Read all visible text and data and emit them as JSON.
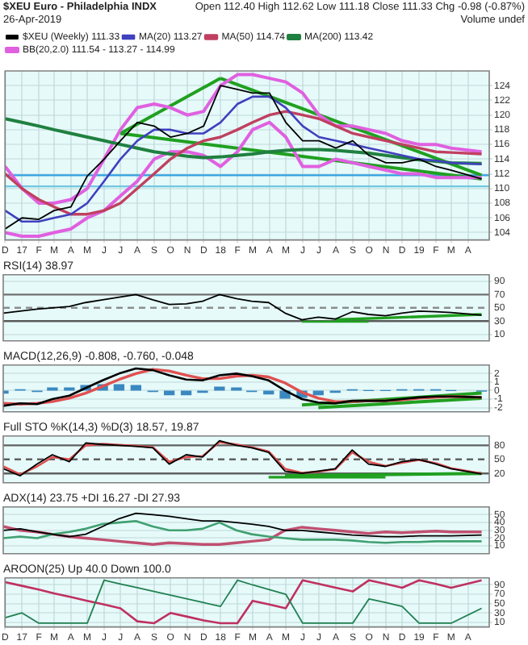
{
  "chart_data": [
    {
      "type": "line",
      "title": "$XEU Euro - Philadelphia INDX",
      "annotations": [
        "26-Apr-2019",
        "Open 112.40  High 112.62  Low 111.18  Close 111.33  Chg -0.98 (-0.87%)",
        "Volume undef"
      ],
      "x": [
        "2016-12",
        "2017-01",
        "2017-02",
        "2017-03",
        "2017-04",
        "2017-05",
        "2017-06",
        "2017-07",
        "2017-08",
        "2017-09",
        "2017-10",
        "2017-11",
        "2017-12",
        "2018-01",
        "2018-02",
        "2018-03",
        "2018-04",
        "2018-05",
        "2018-06",
        "2018-07",
        "2018-08",
        "2018-09",
        "2018-10",
        "2018-11",
        "2018-12",
        "2019-01",
        "2019-02",
        "2019-03",
        "2019-04-26"
      ],
      "series": [
        {
          "name": "$XEU (Weekly) 111.33",
          "color": "#000000",
          "values": [
            104.5,
            106,
            105.8,
            107,
            107.5,
            111.7,
            114,
            116.5,
            119,
            118.5,
            117,
            117.5,
            118.5,
            124,
            123.5,
            123,
            123,
            119,
            116.5,
            116.5,
            115.5,
            116.5,
            114.5,
            113.5,
            113.5,
            114,
            113,
            112.5,
            111.3
          ]
        },
        {
          "name": "MA(20) 113.27",
          "color": "#4040c0",
          "values": [
            107,
            105.5,
            105.5,
            106,
            106.5,
            108,
            111,
            114,
            116.5,
            118,
            118,
            117.5,
            117.5,
            119,
            121.5,
            122.5,
            122.5,
            121,
            118.5,
            117,
            116.5,
            116,
            115.5,
            115,
            114.5,
            114,
            113.8,
            113.5,
            113.3
          ]
        },
        {
          "name": "MA(50) 114.74",
          "color": "#c04060",
          "values": [
            112,
            110,
            108.5,
            107.5,
            106.5,
            106.5,
            107,
            108,
            110,
            112,
            114,
            115.5,
            116.5,
            117,
            118,
            119,
            120,
            120.5,
            120,
            119.5,
            118.5,
            117.5,
            117,
            116.5,
            116,
            115.5,
            115,
            114.9,
            114.7
          ]
        },
        {
          "name": "MA(200) 113.42",
          "color": "#208040",
          "values": [
            119.5,
            119,
            118.5,
            118,
            117.5,
            117,
            116.5,
            116,
            115.5,
            115,
            114.7,
            114.4,
            114.2,
            114.3,
            114.5,
            114.7,
            115,
            115.2,
            115.3,
            115.3,
            115.2,
            115,
            114.8,
            114.5,
            114.2,
            113.9,
            113.7,
            113.5,
            113.4
          ]
        },
        {
          "name": "BB(20,2.0) 111.54 - 113.27 - 114.99",
          "color": "#e060e0",
          "values": [
            113,
            110,
            108,
            108,
            108.5,
            110,
            114,
            118,
            121,
            121.5,
            121,
            120,
            120.5,
            124,
            125.5,
            125.5,
            125,
            124.5,
            123,
            120,
            118.5,
            118.5,
            118,
            117.5,
            116.5,
            116,
            116,
            115.5,
            115
          ]
        },
        {
          "color": "#e060e0",
          "values": [
            104,
            103.5,
            103.5,
            104,
            104.5,
            106,
            107,
            109,
            111,
            114,
            115,
            115,
            114.5,
            113,
            115,
            118,
            119,
            117,
            113,
            113,
            114,
            113.5,
            113,
            112.5,
            112,
            112,
            111.5,
            111.5,
            111.5
          ]
        },
        {
          "color": "#20a020",
          "x": [
            "2017-07",
            "2018-01"
          ],
          "values": [
            117.5,
            125
          ]
        },
        {
          "color": "#20a020",
          "x": [
            "2018-01",
            "2019-04-26"
          ],
          "values": [
            125,
            111.8
          ]
        },
        {
          "color": "#20a020",
          "x": [
            "2017-07",
            "2019-04-26"
          ],
          "values": [
            117.5,
            111.3
          ]
        }
      ],
      "ref_lines": [
        {
          "axis": "y",
          "value": 111.8,
          "color": "#30a0e0"
        },
        {
          "axis": "y",
          "value": 110.3,
          "color": "#70c8e0"
        }
      ],
      "xlim": [
        "2016-12-01",
        "2019-05-10"
      ],
      "xticks": [
        {
          "value": "2016-12",
          "label": "D"
        },
        {
          "value": "2017-01",
          "label": "17"
        },
        {
          "value": "2017-02",
          "label": "F"
        },
        {
          "value": "2017-03",
          "label": "M"
        },
        {
          "value": "2017-04",
          "label": "A"
        },
        {
          "value": "2017-05",
          "label": "M"
        },
        {
          "value": "2017-06",
          "label": "J"
        },
        {
          "value": "2017-07",
          "label": "J"
        },
        {
          "value": "2017-08",
          "label": "A"
        },
        {
          "value": "2017-09",
          "label": "S"
        },
        {
          "value": "2017-10",
          "label": "O"
        },
        {
          "value": "2017-11",
          "label": "N"
        },
        {
          "value": "2017-12",
          "label": "D"
        },
        {
          "value": "2018-01",
          "label": "18"
        },
        {
          "value": "2018-02",
          "label": "F"
        },
        {
          "value": "2018-03",
          "label": "M"
        },
        {
          "value": "2018-04",
          "label": "A"
        },
        {
          "value": "2018-05",
          "label": "M"
        },
        {
          "value": "2018-06",
          "label": "J"
        },
        {
          "value": "2018-07",
          "label": "J"
        },
        {
          "value": "2018-08",
          "label": "A"
        },
        {
          "value": "2018-09",
          "label": "S"
        },
        {
          "value": "2018-10",
          "label": "O"
        },
        {
          "value": "2018-11",
          "label": "N"
        },
        {
          "value": "2018-12",
          "label": "D"
        },
        {
          "value": "2019-01",
          "label": "19"
        },
        {
          "value": "2019-02",
          "label": "F"
        },
        {
          "value": "2019-03",
          "label": "M"
        },
        {
          "value": "2019-04",
          "label": "A"
        }
      ],
      "ylim": [
        103,
        126
      ],
      "yticks": [
        104,
        106,
        108,
        110,
        112,
        114,
        116,
        118,
        120,
        122,
        124
      ],
      "grid": true,
      "legend": "top left",
      "marker": "none"
    },
    {
      "type": "line",
      "title": "RSI(14) 38.97",
      "x": [
        "2016-12",
        "2017-01",
        "2017-02",
        "2017-03",
        "2017-04",
        "2017-05",
        "2017-06",
        "2017-07",
        "2017-08",
        "2017-09",
        "2017-10",
        "2017-11",
        "2017-12",
        "2018-01",
        "2018-02",
        "2018-03",
        "2018-04",
        "2018-05",
        "2018-06",
        "2018-07",
        "2018-08",
        "2018-09",
        "2018-10",
        "2018-11",
        "2018-12",
        "2019-01",
        "2019-02",
        "2019-03",
        "2019-04-26"
      ],
      "series": [
        {
          "color": "#000000",
          "values": [
            42,
            45,
            48,
            50,
            52,
            58,
            62,
            66,
            70,
            62,
            55,
            56,
            60,
            70,
            64,
            60,
            58,
            42,
            32,
            36,
            33,
            44,
            40,
            38,
            42,
            45,
            44,
            43,
            39
          ]
        },
        {
          "color": "#20a020",
          "x": [
            "2018-06",
            "2018-10"
          ],
          "values": [
            29,
            29
          ]
        },
        {
          "color": "#20a020",
          "x": [
            "2018-08",
            "2019-04-26"
          ],
          "values": [
            32,
            40
          ]
        }
      ],
      "ref_lines": [
        {
          "axis": "y",
          "value": 70,
          "color": "#707070"
        },
        {
          "axis": "y",
          "value": 50,
          "color": "#8c8c8c",
          "line_style": "dashed"
        },
        {
          "axis": "y",
          "value": 30,
          "color": "#5a5a5a"
        }
      ],
      "xlim": [
        "2016-12-01",
        "2019-05-10"
      ],
      "ylim": [
        0,
        100
      ],
      "yticks": [
        10,
        30,
        50,
        70,
        90
      ],
      "grid": true,
      "tick_labels": "y",
      "marker": "none"
    },
    {
      "type": "line",
      "title": "MACD(12,26,9) -0.808, -0.760, -0.048",
      "x": [
        "2016-12",
        "2017-01",
        "2017-02",
        "2017-03",
        "2017-04",
        "2017-05",
        "2017-06",
        "2017-07",
        "2017-08",
        "2017-09",
        "2017-10",
        "2017-11",
        "2017-12",
        "2018-01",
        "2018-02",
        "2018-03",
        "2018-04",
        "2018-05",
        "2018-06",
        "2018-07",
        "2018-08",
        "2018-09",
        "2018-10",
        "2018-11",
        "2018-12",
        "2019-01",
        "2019-02",
        "2019-03",
        "2019-04-26"
      ],
      "series": [
        {
          "type": "bar",
          "color": "#3a88c0",
          "values": [
            -0.3,
            0.1,
            -0.1,
            0.3,
            0.3,
            0.6,
            0.7,
            0.7,
            0.6,
            -0.1,
            -0.5,
            -0.5,
            -0.2,
            0.4,
            0.3,
            -0.1,
            -0.4,
            -0.9,
            -0.8,
            -0.5,
            -0.2,
            0.1,
            0,
            0,
            0.1,
            0.1,
            0.1,
            0,
            -0.05
          ]
        },
        {
          "color": "#000000",
          "values": [
            -1.8,
            -1.5,
            -1.6,
            -1,
            -0.6,
            0.3,
            1.2,
            2,
            2.6,
            2.4,
            1.8,
            1.3,
            1.2,
            1.8,
            2,
            1.7,
            1.2,
            0,
            -1,
            -1.4,
            -1.5,
            -1.2,
            -1.2,
            -1.2,
            -1,
            -0.8,
            -0.7,
            -0.7,
            -0.8
          ]
        },
        {
          "color": "#e05050",
          "values": [
            -1.5,
            -1.6,
            -1.5,
            -1.3,
            -0.9,
            -0.3,
            0.5,
            1.3,
            2,
            2.5,
            2.3,
            1.8,
            1.4,
            1.4,
            1.7,
            1.8,
            1.6,
            0.9,
            -0.2,
            -0.9,
            -1.3,
            -1.3,
            -1.2,
            -1.2,
            -1.1,
            -0.9,
            -0.8,
            -0.7,
            -0.8
          ]
        },
        {
          "color": "#20a020",
          "x": [
            "2018-06",
            "2019-04-26"
          ],
          "values": [
            -1.7,
            -0.3
          ]
        },
        {
          "color": "#20a020",
          "x": [
            "2018-07",
            "2019-04-26"
          ],
          "values": [
            -2,
            -0.9
          ]
        }
      ],
      "xlim": [
        "2016-12-01",
        "2019-05-10"
      ],
      "ylim": [
        -2.5,
        3
      ],
      "yticks": [
        -2,
        -1,
        0,
        1,
        2
      ],
      "grid": true,
      "tick_labels": "y",
      "marker": "none"
    },
    {
      "type": "line",
      "title": "Full STO %K(14,3) %D(3) 18.57, 19.87",
      "x": [
        "2016-12",
        "2017-01",
        "2017-02",
        "2017-03",
        "2017-04",
        "2017-05",
        "2017-06",
        "2017-07",
        "2017-08",
        "2017-09",
        "2017-10",
        "2017-11",
        "2017-12",
        "2018-01",
        "2018-02",
        "2018-03",
        "2018-04",
        "2018-05",
        "2018-06",
        "2018-07",
        "2018-08",
        "2018-09",
        "2018-10",
        "2018-11",
        "2018-12",
        "2019-01",
        "2019-02",
        "2019-03",
        "2019-04-26"
      ],
      "series": [
        {
          "color": "#000000",
          "values": [
            30,
            15,
            40,
            60,
            45,
            85,
            82,
            80,
            78,
            75,
            40,
            60,
            55,
            90,
            80,
            75,
            65,
            25,
            20,
            25,
            30,
            70,
            40,
            35,
            45,
            50,
            40,
            30,
            19
          ]
        },
        {
          "color": "#e05050",
          "values": [
            35,
            18,
            35,
            55,
            50,
            80,
            83,
            81,
            79,
            76,
            45,
            55,
            57,
            87,
            82,
            76,
            67,
            30,
            21,
            24,
            29,
            65,
            45,
            36,
            43,
            49,
            42,
            31,
            20
          ]
        },
        {
          "color": "#20a020",
          "x": [
            "2018-04",
            "2018-11"
          ],
          "values": [
            12,
            12
          ]
        },
        {
          "color": "#20a020",
          "x": [
            "2018-05",
            "2019-04-26"
          ],
          "values": [
            15,
            20
          ]
        }
      ],
      "ref_lines": [
        {
          "axis": "y",
          "value": 80,
          "color": "#606060"
        },
        {
          "axis": "y",
          "value": 50,
          "color": "#606060",
          "line_style": "dashed"
        },
        {
          "axis": "y",
          "value": 20,
          "color": "#606060"
        }
      ],
      "xlim": [
        "2016-12-01",
        "2019-05-10"
      ],
      "ylim": [
        0,
        100
      ],
      "yticks": [
        20,
        50,
        80
      ],
      "grid": true,
      "tick_labels": "y",
      "marker": "none"
    },
    {
      "type": "line",
      "title": "ADX(14) 23.75 +DI 16.27 -DI 27.93",
      "x": [
        "2016-12",
        "2017-01",
        "2017-02",
        "2017-03",
        "2017-04",
        "2017-05",
        "2017-06",
        "2017-07",
        "2017-08",
        "2017-09",
        "2017-10",
        "2017-11",
        "2017-12",
        "2018-01",
        "2018-02",
        "2018-03",
        "2018-04",
        "2018-05",
        "2018-06",
        "2018-07",
        "2018-08",
        "2018-09",
        "2018-10",
        "2018-11",
        "2018-12",
        "2019-01",
        "2019-02",
        "2019-03",
        "2019-04-26"
      ],
      "series": [
        {
          "color": "#000000",
          "values": [
            30,
            32,
            28,
            25,
            22,
            25,
            35,
            45,
            52,
            50,
            48,
            45,
            42,
            42,
            40,
            38,
            35,
            30,
            30,
            28,
            26,
            24,
            23,
            22,
            22,
            23,
            23,
            23,
            24
          ]
        },
        {
          "color": "#40a070",
          "values": [
            20,
            22,
            20,
            25,
            28,
            32,
            38,
            40,
            42,
            35,
            30,
            30,
            32,
            40,
            30,
            25,
            22,
            20,
            18,
            18,
            18,
            17,
            15,
            14,
            15,
            15,
            16,
            16,
            16
          ]
        },
        {
          "color": "#c05070",
          "values": [
            35,
            30,
            28,
            25,
            22,
            20,
            18,
            16,
            14,
            12,
            14,
            13,
            12,
            12,
            14,
            16,
            18,
            30,
            34,
            32,
            30,
            28,
            26,
            28,
            27,
            28,
            29,
            28,
            28
          ]
        }
      ],
      "xlim": [
        "2016-12-01",
        "2019-05-10"
      ],
      "ylim": [
        0,
        60
      ],
      "yticks": [
        10,
        20,
        30,
        40,
        50
      ],
      "grid": true,
      "tick_labels": "y",
      "marker": "none"
    },
    {
      "type": "line",
      "title": "AROON(25) Up 40.0 Down 100.0",
      "x": [
        "2016-12",
        "2017-01",
        "2017-02",
        "2017-03",
        "2017-04",
        "2017-05",
        "2017-06",
        "2017-07",
        "2017-08",
        "2017-09",
        "2017-10",
        "2017-11",
        "2017-12",
        "2018-01",
        "2018-02",
        "2018-03",
        "2018-04",
        "2018-05",
        "2018-06",
        "2018-07",
        "2018-08",
        "2018-09",
        "2018-10",
        "2018-11",
        "2018-12",
        "2019-01",
        "2019-02",
        "2019-03",
        "2019-04-26"
      ],
      "series": [
        {
          "color": "#208050",
          "values": [
            20,
            30,
            8,
            8,
            8,
            8,
            100,
            92,
            84,
            76,
            68,
            60,
            52,
            44,
            100,
            90,
            80,
            70,
            8,
            8,
            8,
            8,
            60,
            52,
            44,
            8,
            8,
            8,
            40
          ]
        },
        {
          "color": "#c03060",
          "values": [
            96,
            88,
            80,
            72,
            64,
            56,
            48,
            40,
            12,
            8,
            30,
            22,
            14,
            8,
            8,
            56,
            48,
            40,
            100,
            92,
            84,
            76,
            100,
            92,
            84,
            100,
            92,
            84,
            100
          ]
        }
      ],
      "xlim": [
        "2016-12-01",
        "2019-05-10"
      ],
      "xticks": [
        {
          "value": "2016-12",
          "label": "D"
        },
        {
          "value": "2017-01",
          "label": "17"
        },
        {
          "value": "2017-02",
          "label": "F"
        },
        {
          "value": "2017-03",
          "label": "M"
        },
        {
          "value": "2017-04",
          "label": "A"
        },
        {
          "value": "2017-05",
          "label": "M"
        },
        {
          "value": "2017-06",
          "label": "J"
        },
        {
          "value": "2017-07",
          "label": "J"
        },
        {
          "value": "2017-08",
          "label": "A"
        },
        {
          "value": "2017-09",
          "label": "S"
        },
        {
          "value": "2017-10",
          "label": "O"
        },
        {
          "value": "2017-11",
          "label": "N"
        },
        {
          "value": "2017-12",
          "label": "D"
        },
        {
          "value": "2018-01",
          "label": "18"
        },
        {
          "value": "2018-02",
          "label": "F"
        },
        {
          "value": "2018-03",
          "label": "M"
        },
        {
          "value": "2018-04",
          "label": "A"
        },
        {
          "value": "2018-05",
          "label": "M"
        },
        {
          "value": "2018-06",
          "label": "J"
        },
        {
          "value": "2018-07",
          "label": "J"
        },
        {
          "value": "2018-08",
          "label": "A"
        },
        {
          "value": "2018-09",
          "label": "S"
        },
        {
          "value": "2018-10",
          "label": "O"
        },
        {
          "value": "2018-11",
          "label": "N"
        },
        {
          "value": "2018-12",
          "label": "D"
        },
        {
          "value": "2019-01",
          "label": "19"
        },
        {
          "value": "2019-02",
          "label": "F"
        },
        {
          "value": "2019-03",
          "label": "M"
        },
        {
          "value": "2019-04",
          "label": "A"
        }
      ],
      "ylim": [
        0,
        105
      ],
      "yticks": [
        10,
        30,
        50,
        70,
        90
      ],
      "grid": true,
      "marker": "none"
    }
  ]
}
